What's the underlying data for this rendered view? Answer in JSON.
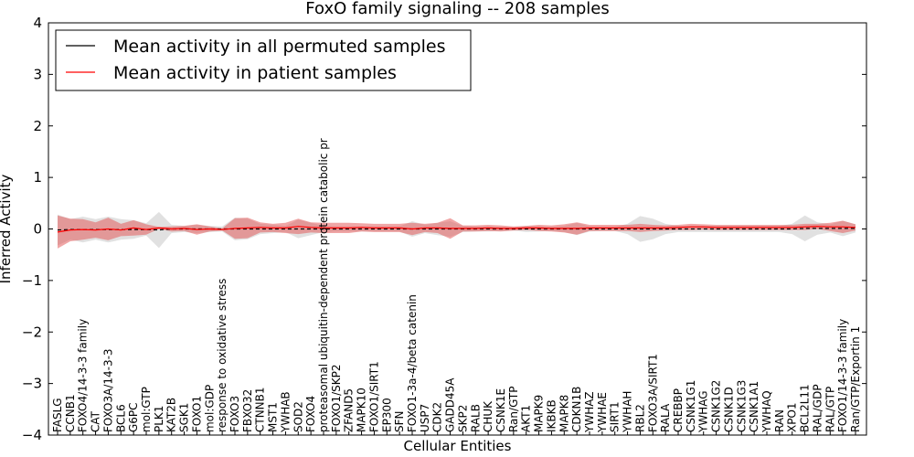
{
  "chart_data": {
    "type": "line",
    "title": "FoxO family signaling -- 208 samples",
    "xlabel": "Cellular Entities",
    "ylabel": "Inferred Activity",
    "ylim": [
      -4,
      4
    ],
    "yticks": [
      -4,
      -3,
      -2,
      -1,
      0,
      1,
      2,
      3,
      4
    ],
    "legend_position": "top-left",
    "colors": {
      "permuted": "#000000",
      "patient": "#ff0000",
      "patient_band": "#e35d5d",
      "permuted_band": "#bdbdbd"
    },
    "categories": [
      "FASLG",
      "CCNB1",
      "FOXO4/14-3-3 family",
      "CAT",
      "FOXO3A/14-3-3",
      "BCL6",
      "G6PC",
      "mol:GTP",
      "PLK1",
      "KAT2B",
      "SGK1",
      "FOXO1",
      "mol:GDP",
      "response to oxidative stress",
      "FOXO3",
      "FBXO32",
      "CTNNB1",
      "MST1",
      "YWHAB",
      "SOD2",
      "FOXO4",
      "proteasomal ubiquitin-dependent protein catabolic pr",
      "FOXO1/SKP2",
      "ZFAND5",
      "MAPK10",
      "FOXO1/SIRT1",
      "EP300",
      "SFN",
      "FOXO1-3a-4/beta catenin",
      "USP7",
      "CDK2",
      "GADD45A",
      "SKP2",
      "RALB",
      "CHUK",
      "CSNK1E",
      "Ran/GTP",
      "AKT1",
      "MAPK9",
      "IKBKB",
      "MAPK8",
      "CDKN1B",
      "YWHAZ",
      "YWHAE",
      "SIRT1",
      "YWHAH",
      "RBL2",
      "FOXO3A/SIRT1",
      "RALA",
      "CREBBP",
      "CSNK1G1",
      "YWHAG",
      "CSNK1G2",
      "CSNK1D",
      "CSNK1G3",
      "CSNK1A1",
      "YWHAQ",
      "RAN",
      "XPO1",
      "BCL2L11",
      "RAL/GDP",
      "RAL/GTP",
      "FOXO1/14-3-3 family",
      "Ran/GTP/Exportin 1"
    ],
    "series": [
      {
        "name": "Mean activity in all permuted samples",
        "values": [
          -0.02,
          -0.01,
          -0.01,
          -0.01,
          -0.01,
          -0.01,
          -0.01,
          -0.01,
          -0.02,
          0.0,
          0.0,
          0.0,
          0.0,
          0.0,
          0.0,
          0.0,
          0.0,
          0.0,
          0.0,
          0.0,
          0.0,
          0.0,
          0.0,
          0.0,
          0.0,
          0.0,
          0.0,
          0.0,
          0.0,
          0.0,
          0.0,
          0.0,
          0.0,
          0.0,
          0.0,
          0.0,
          0.0,
          0.0,
          0.0,
          0.0,
          0.0,
          0.0,
          0.0,
          0.0,
          0.0,
          0.0,
          0.0,
          0.0,
          0.0,
          0.0,
          0.0,
          0.0,
          0.0,
          0.0,
          0.0,
          0.0,
          0.0,
          0.0,
          0.0,
          0.01,
          0.01,
          0.01,
          0.01,
          0.01
        ],
        "band": [
          0.3,
          0.2,
          0.25,
          0.2,
          0.25,
          0.2,
          0.18,
          0.12,
          0.35,
          0.08,
          0.06,
          0.08,
          0.06,
          0.05,
          0.22,
          0.2,
          0.1,
          0.08,
          0.06,
          0.18,
          0.12,
          0.06,
          0.05,
          0.05,
          0.05,
          0.05,
          0.05,
          0.05,
          0.15,
          0.08,
          0.12,
          0.15,
          0.06,
          0.05,
          0.05,
          0.04,
          0.03,
          0.06,
          0.05,
          0.04,
          0.06,
          0.12,
          0.05,
          0.04,
          0.04,
          0.1,
          0.25,
          0.2,
          0.1,
          0.06,
          0.06,
          0.06,
          0.06,
          0.06,
          0.06,
          0.06,
          0.06,
          0.06,
          0.1,
          0.25,
          0.12,
          0.08,
          0.15,
          0.08
        ]
      },
      {
        "name": "Mean activity in patient samples",
        "values": [
          -0.06,
          -0.02,
          -0.01,
          -0.02,
          0.0,
          -0.02,
          0.02,
          -0.01,
          0.02,
          0.0,
          0.01,
          -0.01,
          0.0,
          -0.01,
          0.01,
          0.02,
          0.03,
          0.02,
          0.02,
          0.05,
          0.03,
          0.02,
          0.02,
          0.02,
          0.03,
          0.02,
          0.02,
          0.02,
          0.0,
          0.02,
          0.02,
          0.01,
          0.01,
          0.01,
          0.02,
          0.01,
          0.01,
          0.02,
          0.02,
          0.01,
          0.01,
          0.01,
          0.02,
          0.02,
          0.02,
          0.02,
          0.02,
          0.02,
          0.02,
          0.03,
          0.04,
          0.04,
          0.03,
          0.03,
          0.03,
          0.03,
          0.03,
          0.03,
          0.03,
          0.04,
          0.05,
          0.04,
          0.04,
          0.03
        ],
        "band": [
          0.32,
          0.22,
          0.2,
          0.15,
          0.22,
          0.12,
          0.15,
          0.1,
          0.02,
          0.05,
          0.05,
          0.1,
          0.05,
          0.02,
          0.2,
          0.2,
          0.1,
          0.08,
          0.1,
          0.15,
          0.1,
          0.1,
          0.1,
          0.1,
          0.08,
          0.08,
          0.08,
          0.08,
          0.12,
          0.08,
          0.1,
          0.2,
          0.06,
          0.06,
          0.06,
          0.06,
          0.04,
          0.04,
          0.06,
          0.06,
          0.08,
          0.12,
          0.06,
          0.06,
          0.06,
          0.06,
          0.08,
          0.06,
          0.05,
          0.05,
          0.06,
          0.05,
          0.05,
          0.05,
          0.05,
          0.05,
          0.05,
          0.05,
          0.05,
          0.06,
          0.05,
          0.08,
          0.12,
          0.06
        ]
      }
    ]
  }
}
